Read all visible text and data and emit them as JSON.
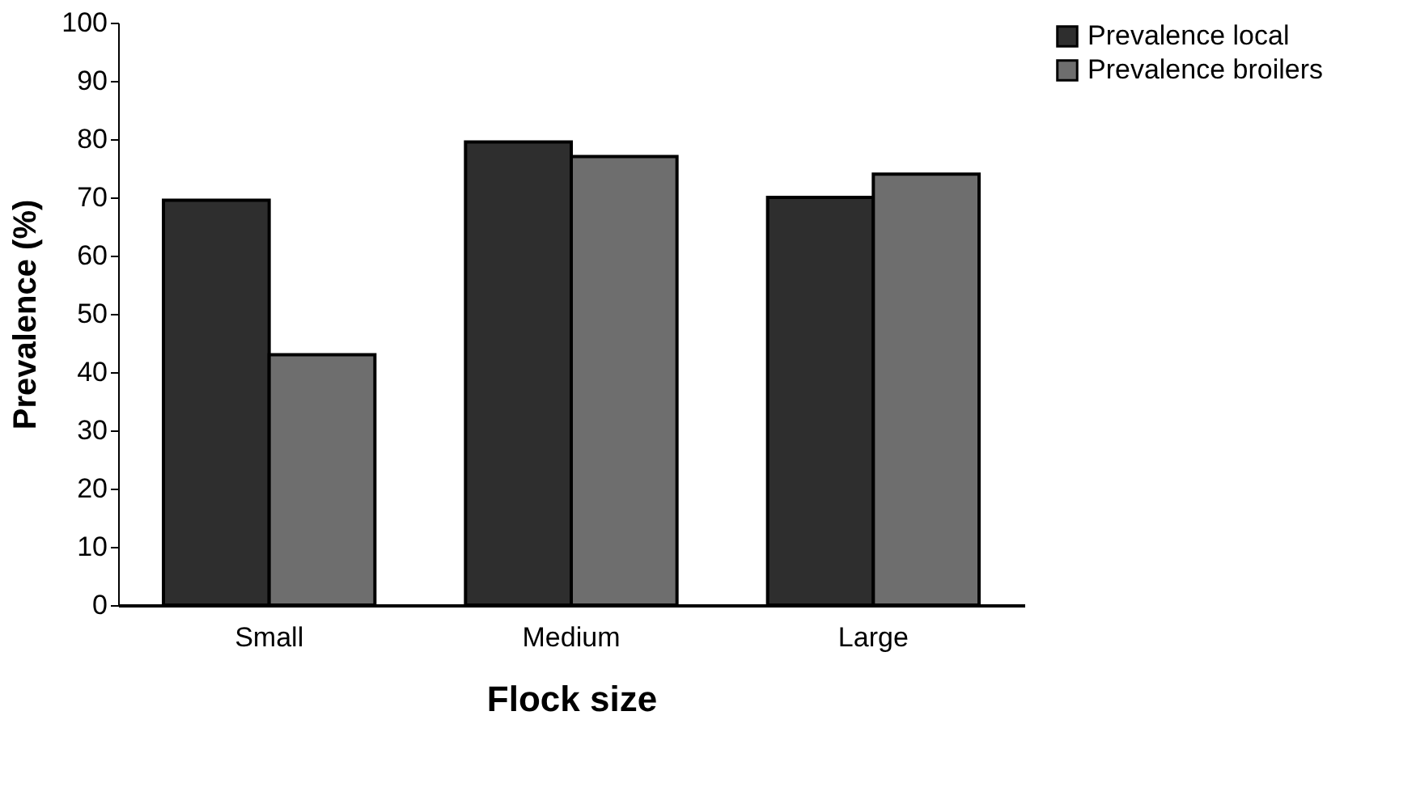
{
  "chart_data": {
    "type": "bar",
    "xlabel": "Flock size",
    "ylabel": "Prevalence (%)",
    "categories": [
      "Small",
      "Medium",
      "Large"
    ],
    "series": [
      {
        "name": "Prevalence local",
        "color": "#2e2e2e",
        "values": [
          69.5,
          79.5,
          70
        ]
      },
      {
        "name": "Prevalence broilers",
        "color": "#6e6e6e",
        "values": [
          43,
          77,
          74
        ]
      }
    ],
    "ylim": [
      0,
      100
    ],
    "yticks": [
      0,
      10,
      20,
      30,
      40,
      50,
      60,
      70,
      80,
      90,
      100
    ],
    "grid": false,
    "legend": "right"
  }
}
